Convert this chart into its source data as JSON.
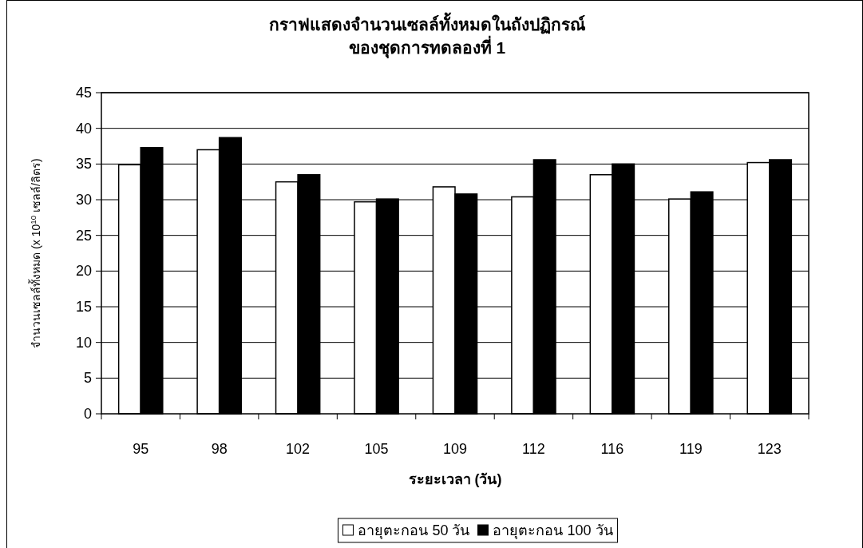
{
  "chart_data": {
    "type": "bar",
    "title": "กราฟแสดงจำนวนเซลล์ทั้งหมดในถังปฏิกรณ์\nของชุดการทดลองที่ 1",
    "xlabel": "ระยะเวลา (วัน)",
    "ylabel": "จำนวนเซลล์ทั้งหมด (x 10$^{10}$ เซลล์/ลิตร)",
    "categories": [
      "95",
      "98",
      "102",
      "105",
      "109",
      "112",
      "116",
      "119",
      "123"
    ],
    "series": [
      {
        "name": "อายุตะกอน 50 วัน",
        "color": "#ffffff",
        "values": [
          34.9,
          37.0,
          32.5,
          29.7,
          31.8,
          30.4,
          33.5,
          30.1,
          35.2
        ]
      },
      {
        "name": "อายุตะกอน 100 วัน",
        "color": "#000000",
        "values": [
          37.3,
          38.7,
          33.5,
          30.1,
          30.8,
          35.6,
          35.0,
          31.1,
          35.6
        ]
      }
    ],
    "ylim": [
      0,
      45
    ],
    "yticks": [
      0,
      5,
      10,
      15,
      20,
      25,
      30,
      35,
      40,
      45
    ],
    "grid": "y",
    "legend": "bottom"
  }
}
